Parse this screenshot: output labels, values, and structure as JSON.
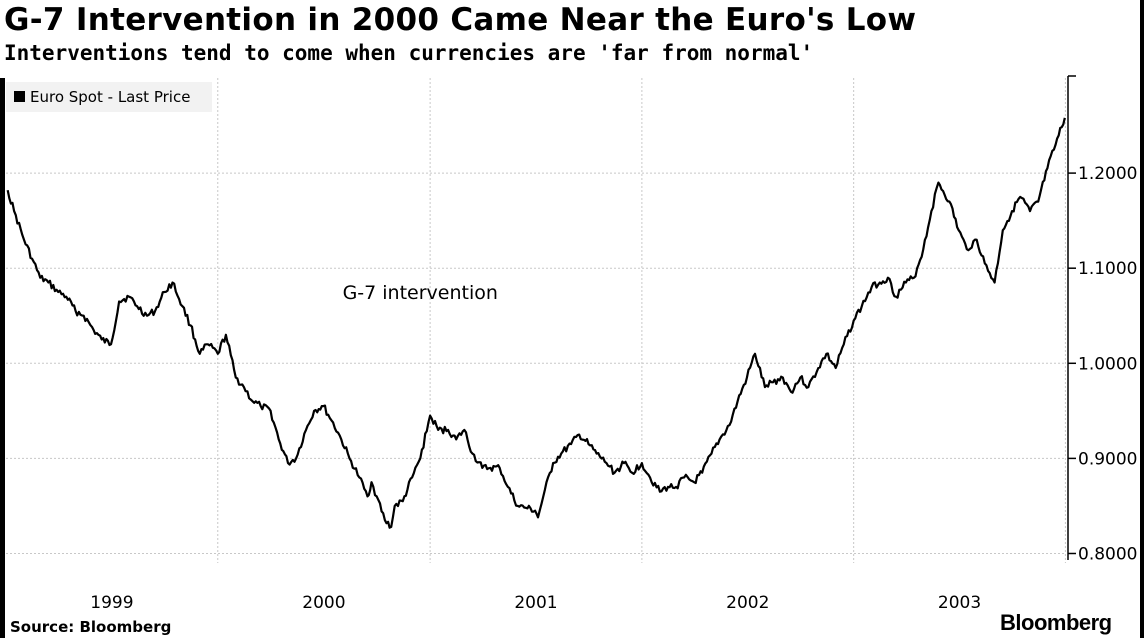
{
  "header": {
    "title": "G-7 Intervention in 2000 Came Near the Euro's Low",
    "subtitle": "Interventions tend to come when currencies are 'far from normal'"
  },
  "footer": {
    "source": "Source: Bloomberg",
    "logo": "Bloomberg"
  },
  "chart_data": {
    "type": "line",
    "title": "G-7 Intervention in 2000 Came Near the Euro's Low",
    "subtitle": "Interventions tend to come when currencies are 'far from normal'",
    "series": [
      {
        "name": "Euro Spot - Last Price",
        "color": "#000000",
        "points": [
          [
            "1999-01-04",
            1.182
          ],
          [
            "1999-01-15",
            1.16
          ],
          [
            "1999-02-01",
            1.13
          ],
          [
            "1999-02-15",
            1.11
          ],
          [
            "1999-03-01",
            1.09
          ],
          [
            "1999-03-15",
            1.085
          ],
          [
            "1999-04-01",
            1.075
          ],
          [
            "1999-04-15",
            1.07
          ],
          [
            "1999-05-01",
            1.055
          ],
          [
            "1999-05-15",
            1.05
          ],
          [
            "1999-06-01",
            1.035
          ],
          [
            "1999-06-15",
            1.025
          ],
          [
            "1999-07-01",
            1.02
          ],
          [
            "1999-07-15",
            1.065
          ],
          [
            "1999-08-01",
            1.07
          ],
          [
            "1999-08-15",
            1.06
          ],
          [
            "1999-09-01",
            1.05
          ],
          [
            "1999-09-15",
            1.055
          ],
          [
            "1999-10-01",
            1.075
          ],
          [
            "1999-10-15",
            1.085
          ],
          [
            "1999-11-01",
            1.06
          ],
          [
            "1999-11-15",
            1.04
          ],
          [
            "1999-12-01",
            1.01
          ],
          [
            "1999-12-15",
            1.02
          ],
          [
            "2000-01-01",
            1.01
          ],
          [
            "2000-01-15",
            1.03
          ],
          [
            "2000-02-01",
            0.985
          ],
          [
            "2000-02-15",
            0.975
          ],
          [
            "2000-03-01",
            0.96
          ],
          [
            "2000-03-15",
            0.955
          ],
          [
            "2000-04-01",
            0.95
          ],
          [
            "2000-04-15",
            0.92
          ],
          [
            "2000-05-01",
            0.895
          ],
          [
            "2000-05-15",
            0.9
          ],
          [
            "2000-06-01",
            0.93
          ],
          [
            "2000-06-15",
            0.95
          ],
          [
            "2000-07-01",
            0.955
          ],
          [
            "2000-07-15",
            0.94
          ],
          [
            "2000-08-01",
            0.92
          ],
          [
            "2000-08-15",
            0.9
          ],
          [
            "2000-09-01",
            0.88
          ],
          [
            "2000-09-15",
            0.86
          ],
          [
            "2000-09-22",
            0.875
          ],
          [
            "2000-10-01",
            0.86
          ],
          [
            "2000-10-15",
            0.835
          ],
          [
            "2000-10-26",
            0.828
          ],
          [
            "2000-11-01",
            0.85
          ],
          [
            "2000-11-15",
            0.855
          ],
          [
            "2000-12-01",
            0.88
          ],
          [
            "2000-12-15",
            0.9
          ],
          [
            "2001-01-01",
            0.945
          ],
          [
            "2001-01-15",
            0.93
          ],
          [
            "2001-02-01",
            0.93
          ],
          [
            "2001-02-15",
            0.92
          ],
          [
            "2001-03-01",
            0.93
          ],
          [
            "2001-03-15",
            0.905
          ],
          [
            "2001-04-01",
            0.89
          ],
          [
            "2001-04-15",
            0.89
          ],
          [
            "2001-05-01",
            0.89
          ],
          [
            "2001-05-15",
            0.87
          ],
          [
            "2001-06-01",
            0.85
          ],
          [
            "2001-06-15",
            0.848
          ],
          [
            "2001-07-01",
            0.845
          ],
          [
            "2001-07-06",
            0.838
          ],
          [
            "2001-07-15",
            0.86
          ],
          [
            "2001-08-01",
            0.895
          ],
          [
            "2001-08-15",
            0.905
          ],
          [
            "2001-09-01",
            0.915
          ],
          [
            "2001-09-15",
            0.925
          ],
          [
            "2001-10-01",
            0.915
          ],
          [
            "2001-10-15",
            0.905
          ],
          [
            "2001-11-01",
            0.895
          ],
          [
            "2001-11-15",
            0.885
          ],
          [
            "2001-12-01",
            0.895
          ],
          [
            "2001-12-15",
            0.885
          ],
          [
            "2002-01-01",
            0.895
          ],
          [
            "2002-01-15",
            0.88
          ],
          [
            "2002-02-01",
            0.865
          ],
          [
            "2002-02-15",
            0.87
          ],
          [
            "2002-03-01",
            0.87
          ],
          [
            "2002-03-15",
            0.88
          ],
          [
            "2002-04-01",
            0.875
          ],
          [
            "2002-04-15",
            0.885
          ],
          [
            "2002-05-01",
            0.905
          ],
          [
            "2002-05-15",
            0.92
          ],
          [
            "2002-06-01",
            0.935
          ],
          [
            "2002-06-15",
            0.96
          ],
          [
            "2002-07-01",
            0.985
          ],
          [
            "2002-07-15",
            1.01
          ],
          [
            "2002-08-01",
            0.975
          ],
          [
            "2002-08-15",
            0.98
          ],
          [
            "2002-09-01",
            0.985
          ],
          [
            "2002-09-15",
            0.97
          ],
          [
            "2002-10-01",
            0.985
          ],
          [
            "2002-10-15",
            0.975
          ],
          [
            "2002-11-01",
            0.995
          ],
          [
            "2002-11-15",
            1.01
          ],
          [
            "2002-12-01",
            0.995
          ],
          [
            "2002-12-15",
            1.02
          ],
          [
            "2003-01-01",
            1.045
          ],
          [
            "2003-01-15",
            1.06
          ],
          [
            "2003-02-01",
            1.08
          ],
          [
            "2003-02-15",
            1.085
          ],
          [
            "2003-03-01",
            1.09
          ],
          [
            "2003-03-15",
            1.07
          ],
          [
            "2003-04-01",
            1.085
          ],
          [
            "2003-04-15",
            1.09
          ],
          [
            "2003-05-01",
            1.12
          ],
          [
            "2003-05-15",
            1.16
          ],
          [
            "2003-05-27",
            1.19
          ],
          [
            "2003-06-15",
            1.17
          ],
          [
            "2003-07-01",
            1.14
          ],
          [
            "2003-07-15",
            1.12
          ],
          [
            "2003-08-01",
            1.13
          ],
          [
            "2003-08-15",
            1.105
          ],
          [
            "2003-09-01",
            1.085
          ],
          [
            "2003-09-15",
            1.14
          ],
          [
            "2003-10-01",
            1.16
          ],
          [
            "2003-10-15",
            1.175
          ],
          [
            "2003-11-01",
            1.16
          ],
          [
            "2003-11-15",
            1.17
          ],
          [
            "2003-12-01",
            1.205
          ],
          [
            "2003-12-15",
            1.23
          ],
          [
            "2003-12-31",
            1.258
          ]
        ]
      }
    ],
    "x_axis": {
      "type": "date",
      "range": [
        "1999-01-01",
        "2004-01-02"
      ],
      "tick_labels": [
        "1999",
        "2000",
        "2001",
        "2002",
        "2003"
      ]
    },
    "y_axis": {
      "range": [
        0.79,
        1.3
      ],
      "ticks": [
        0.8,
        0.9,
        1.0,
        1.1,
        1.2
      ],
      "tick_labels": [
        "0.8000",
        "0.9000",
        "1.0000",
        "1.1000",
        "1.2000"
      ],
      "position": "right"
    },
    "grid": true,
    "legend": {
      "position": "top-left",
      "entries": [
        "Euro Spot - Last Price"
      ]
    },
    "annotations": [
      {
        "text": "G-7 intervention",
        "x": "2000-12-15",
        "y": 1.075
      }
    ]
  }
}
